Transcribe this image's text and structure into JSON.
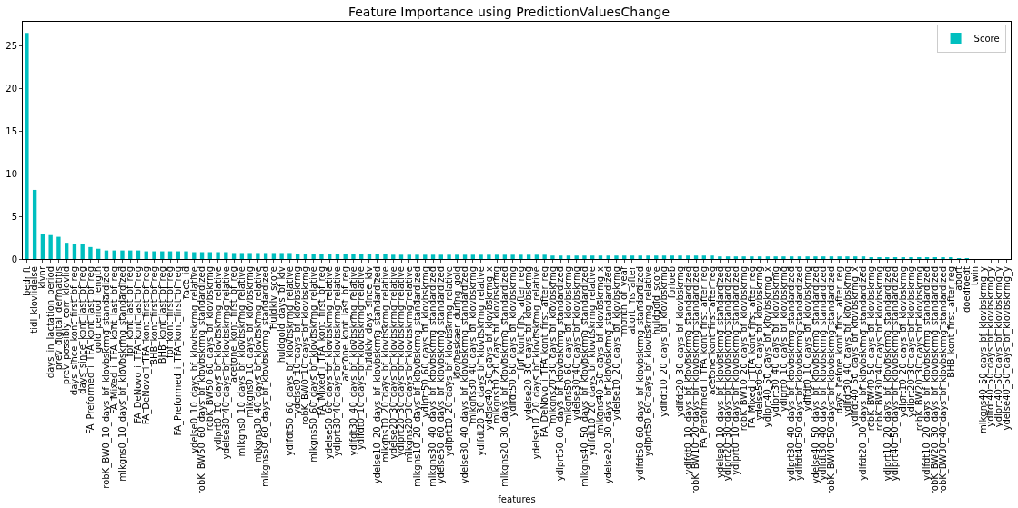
{
  "chart_data": {
    "type": "bar",
    "title": "Feature Importance using PredictionValuesChange",
    "xlabel": "features",
    "categories": [
      "bedrift",
      "tidl_klovlidelse",
      "klvnr",
      "days_in_lactation_period",
      "prev_digital_dermatitis",
      "prev_possibly_corr_klovlid",
      "days_since_kont_first_bf_reg",
      "days_since_kont_last_bf_reg",
      "FA_Preformed_i_TFA_kont_last_bf_reg",
      "gold_period_length",
      "robK_BW0_10_days_bf_klovbskrmg_standardized",
      "FA_Mixed_i_TFA_kont_last_bf_reg",
      "mlkgns0_10_days_bf_klovbskrmg_standardized",
      "fpf_kont_last_bf_reg",
      "FA_DeNovo_i_TFA_kont_last_bf_reg",
      "FA_DeNovo_i_TFA_kont_first_bf_reg",
      "BHB_kont_first_bf_reg",
      "BHB_kont_last_bf_reg",
      "fpf_kont_first_bf_reg",
      "FA_Preformed_i_TFA_kont_first_bf_reg",
      "race_id",
      "ydelse0_10_days_bf_klovbskrmg_relative",
      "robK_BW50_60_days_bf_klovbskrmg_standardized",
      "robK_BW50_60_days_bf_klovbskrmg",
      "ydlprt0_10_days_bf_klovbskrmg_relative",
      "ydelse30_40_days_bf_klovbskrmg_relative",
      "acetone_kont_first_bf_reg",
      "mlkgns0_10_days_bf_klovbskrmg_relative",
      "mlkgns0_10_days_bf_klovbskrmg",
      "mlkgns30_40_days_bf_klovbskrmg_relative",
      "mlkgns50_60_days_bf_klovbskrmg_standardized",
      "Huldklv_score",
      "huldgold_days_bf_klv",
      "ydlfdt50_60_days_bf_klovbskrmg_relative",
      "ydelse0_10_days_bf_klovbskrmg",
      "robK_BW0_10_days_bf_klovbskrmg",
      "mlkgns50_60_days_bf_klovbskrmg_relative",
      "FA_Mixed_i_TFA_kont_first_bf_reg",
      "ydelse50_60_days_bf_klovbskrmg_relative",
      "ydlprt30_40_days_bf_klovbskrmg_relative",
      "acetone_kont_last_bf_reg",
      "ydlfdt30_40_days_bf_klovbskrmg_relative",
      "ydlfdt0_10_days_bf_klovbskrmg_relative",
      "huldklv_days_since_klv",
      "ydelse10_20_days_bf_klovbskrmg_standardized",
      "mlkgns10_20_days_bf_klovbskrmg_relative",
      "ydelse20_30_days_bf_klovbskrmg_relative",
      "ydlprt20_30_days_bf_klovbskrmg_relative",
      "mlkgns20_30_days_bf_klovbskrmg_relative",
      "mlkgns10_20_days_bf_klovbskrmg_standardized",
      "ydlprt50_60_days_bf_klovbskrmg",
      "mlkgns30_40_days_bf_klovbskrmg_standardized",
      "ydelse50_60_days_bf_klovbskrmg_standardized",
      "ydlprt10_20_days_bf_klovbskrmg_relative",
      "klovbeskaer_during_gold",
      "ydelse30_40_days_bf_klovbskrmg_standardized",
      "mlkgns30_40_days_bf_klovbskrmg",
      "ydlfdt20_30_days_bf_klovbskrmg_relative",
      "ydelse40_50_days_bf_klovbskrmg_x",
      "mlkgns10_20_days_bf_klovbskrmg",
      "mlkgns20_30_days_bf_klovbskrmg_standardized",
      "ydlfdt50_60_days_bf_klovbskrmg",
      "fpf_kont_first_after_reg",
      "ydelse20_30_days_bf_klovbskrmg",
      "ydelse10_20_days_bf_klovbskrmg_relative",
      "FA_DeNovo_i_TFA_kont_first_after_reg",
      "mlkgns20_30_days_bf_klovbskrmg",
      "ydlprt50_60_days_bf_klovbskrmg_standardized",
      "mlkgns50_60_days_bf_klovbskrmg",
      "ydelse30_40_days_bf_klovbskrmg",
      "mlkgns40_50_days_bf_klovbskrmg_standardized",
      "ydlfdt10_20_days_bf_klovbskrmg_relative",
      "mlkgns40_50_days_bf_klovbskrmg_x",
      "ydelse20_30_days_bf_klovbskrmg_standardized",
      "ydelse10_20_days_bf_klovbskrmg",
      "month_of_year",
      "abort_ins_after",
      "ydlfdt50_60_days_bf_klovbskrmg_standardized",
      "ydlprt50_60_days_bf_klovbskrmg_relative",
      "huldgold_score",
      "ydlfdt10_20_days_bf_klovbskrmg",
      "forloeb",
      "ydlfdt20_30_days_bf_klovbskrmg",
      "ydlfdt0_10_days_bf_klovbskrmg_standardized",
      "robK_BW10_20_days_bf_klovbskrmg_standardized",
      "FA_Preformed_i_TFA_kont_first_after_reg",
      "acetone_kont_first_after_reg",
      "ydelse0_10_days_bf_klovbskrmg_standardized",
      "ydlprt20_30_days_bf_klovbskrmg_standardized",
      "ydlprt0_10_days_bf_klovbskrmg_standardized",
      "robK_BW10_20_days_bf_klovbskrmg",
      "FA_Mixed_i_TFA_kont_first_after_reg",
      "ydelse50_60_days_bf_klovbskrmg",
      "ydlprt40_50_days_bf_klovbskrmg_x",
      "ydlprt30_40_days_bf_klovbskrmg",
      "ydlprt0_10_days_bf_klovbskrmg",
      "ydlprt30_40_days_bf_klovbskrmg_standardized",
      "ydlfdt40_50_days_bf_klovbskrmg_standardized",
      "ydlfdt0_10_days_bf_klovbskrmg",
      "ydelse40_50_days_bf_klovbskrmg_standardized",
      "ydlfdt30_40_days_bf_klovbskrmg_standardized",
      "robK_BW40_50_days_bf_klovbskrmg_standardized",
      "days_before_kont_first_after_reg",
      "ydlfdt30_40_days_bf_klovbskrmg",
      "ydlfdt40_50_days_bf_klovbskrmg_x",
      "ydlfdt20_30_days_bf_klovbskrmg_standardized",
      "robK_BW40_50_days_bf_klovbskrmg",
      "robK_BW30_40_days_bf_klovbskrmg",
      "ydlprt10_20_days_bf_klovbskrmg_standardized",
      "ydlprt40_50_days_bf_klovbskrmg_standardized",
      "ydlprt10_20_days_bf_klovbskrmg",
      "ydlprt20_30_days_bf_klovbskrmg",
      "robK_BW20_30_days_bf_klovbskrmg",
      "ydlfdt10_20_days_bf_klovbskrmg_standardized",
      "robK_BW20_30_days_bf_klovbskrmg_standardized",
      "robK_BW30_40_days_bf_klovbskrmg_standardized",
      "BHB_kont_first_after_reg",
      "abort",
      "doedfoedt",
      "twin",
      "mlkgns40_50_days_bf_klovbskrmg_y",
      "ydlfdt40_50_days_bf_klovbskrmg_y",
      "ydlprt40_50_days_bf_klovbskrmg_y",
      "ydelse40_50_days_bf_klovbskrmg_y"
    ],
    "series": [
      {
        "name": "Score",
        "color": "#00bfbf",
        "values": [
          26.5,
          8.1,
          2.9,
          2.8,
          2.6,
          1.9,
          1.8,
          1.8,
          1.4,
          1.2,
          1.0,
          1.0,
          1.0,
          1.0,
          1.0,
          0.9,
          0.9,
          0.9,
          0.9,
          0.9,
          0.9,
          0.8,
          0.8,
          0.8,
          0.8,
          0.8,
          0.7,
          0.7,
          0.7,
          0.7,
          0.7,
          0.7,
          0.7,
          0.7,
          0.6,
          0.6,
          0.6,
          0.6,
          0.6,
          0.6,
          0.6,
          0.6,
          0.6,
          0.6,
          0.6,
          0.6,
          0.5,
          0.5,
          0.5,
          0.5,
          0.5,
          0.5,
          0.5,
          0.5,
          0.5,
          0.5,
          0.5,
          0.5,
          0.5,
          0.5,
          0.5,
          0.5,
          0.5,
          0.5,
          0.5,
          0.5,
          0.4,
          0.4,
          0.4,
          0.4,
          0.4,
          0.4,
          0.4,
          0.4,
          0.4,
          0.4,
          0.4,
          0.4,
          0.4,
          0.4,
          0.4,
          0.4,
          0.4,
          0.4,
          0.4,
          0.4,
          0.4,
          0.3,
          0.3,
          0.3,
          0.3,
          0.3,
          0.3,
          0.3,
          0.3,
          0.3,
          0.3,
          0.3,
          0.3,
          0.3,
          0.3,
          0.3,
          0.3,
          0.3,
          0.3,
          0.3,
          0.2,
          0.2,
          0.2,
          0.2,
          0.2,
          0.2,
          0.2,
          0.2,
          0.2,
          0.2,
          0.2,
          0.1,
          0.1,
          0.0,
          0,
          0,
          0,
          0
        ]
      }
    ],
    "ylim": [
      0,
      27.8
    ],
    "yticks": [
      0,
      5,
      10,
      15,
      20,
      25
    ],
    "legend": "top right"
  }
}
